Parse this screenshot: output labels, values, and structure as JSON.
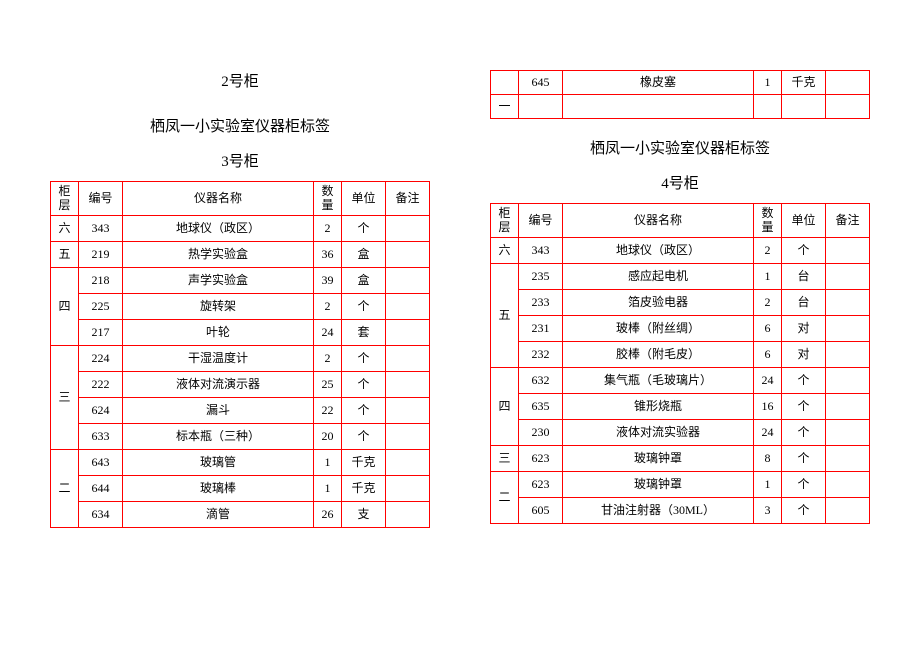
{
  "colors": {
    "border": "#ff0000",
    "text": "#000000",
    "background": "#ffffff"
  },
  "left": {
    "top_heading": "2号柜",
    "title": "栖凤一小实验室仪器柜标签",
    "cabinet": "3号柜",
    "headers": {
      "layer": "柜层",
      "code": "编号",
      "name": "仪器名称",
      "qty": "数量",
      "unit": "单位",
      "note": "备注"
    },
    "rows": [
      {
        "layer": "六",
        "code": "343",
        "name": "地球仪（政区）",
        "qty": "2",
        "unit": "个",
        "note": "",
        "rowspan": 1
      },
      {
        "layer": "五",
        "code": "219",
        "name": "热学实验盒",
        "qty": "36",
        "unit": "盒",
        "note": "",
        "rowspan": 1
      },
      {
        "layer": "四",
        "code": "218",
        "name": "声学实验盒",
        "qty": "39",
        "unit": "盒",
        "note": "",
        "rowspan": 3
      },
      {
        "code": "225",
        "name": "旋转架",
        "qty": "2",
        "unit": "个",
        "note": ""
      },
      {
        "code": "217",
        "name": "叶轮",
        "qty": "24",
        "unit": "套",
        "note": ""
      },
      {
        "layer": "三",
        "code": "224",
        "name": "干湿温度计",
        "qty": "2",
        "unit": "个",
        "note": "",
        "rowspan": 4
      },
      {
        "code": "222",
        "name": "液体对流演示器",
        "qty": "25",
        "unit": "个",
        "note": ""
      },
      {
        "code": "624",
        "name": "漏斗",
        "qty": "22",
        "unit": "个",
        "note": ""
      },
      {
        "code": "633",
        "name": "标本瓶（三种）",
        "qty": "20",
        "unit": "个",
        "note": ""
      },
      {
        "layer": "二",
        "code": "643",
        "name": "玻璃管",
        "qty": "1",
        "unit": "千克",
        "note": "",
        "rowspan": 3
      },
      {
        "code": "644",
        "name": "玻璃棒",
        "qty": "1",
        "unit": "千克",
        "note": ""
      },
      {
        "code": "634",
        "name": "滴管",
        "qty": "26",
        "unit": "支",
        "note": ""
      }
    ]
  },
  "right": {
    "mini_rows": [
      {
        "layer": "",
        "code": "645",
        "name": "橡皮塞",
        "qty": "1",
        "unit": "千克",
        "note": ""
      },
      {
        "layer": "一",
        "code": "",
        "name": "",
        "qty": "",
        "unit": "",
        "note": ""
      }
    ],
    "title": "栖凤一小实验室仪器柜标签",
    "cabinet": "4号柜",
    "headers": {
      "layer": "柜层",
      "code": "编号",
      "name": "仪器名称",
      "qty": "数量",
      "unit": "单位",
      "note": "备注"
    },
    "rows": [
      {
        "layer": "六",
        "code": "343",
        "name": "地球仪（政区）",
        "qty": "2",
        "unit": "个",
        "note": "",
        "rowspan": 1
      },
      {
        "layer": "五",
        "code": "235",
        "name": "感应起电机",
        "qty": "1",
        "unit": "台",
        "note": "",
        "rowspan": 4
      },
      {
        "code": "233",
        "name": "箔皮验电器",
        "qty": "2",
        "unit": "台",
        "note": ""
      },
      {
        "code": "231",
        "name": "玻棒（附丝绸）",
        "qty": "6",
        "unit": "对",
        "note": ""
      },
      {
        "code": "232",
        "name": "胶棒（附毛皮）",
        "qty": "6",
        "unit": "对",
        "note": ""
      },
      {
        "layer": "四",
        "code": "632",
        "name": "集气瓶（毛玻璃片）",
        "qty": "24",
        "unit": "个",
        "note": "",
        "rowspan": 3
      },
      {
        "code": "635",
        "name": "锥形烧瓶",
        "qty": "16",
        "unit": "个",
        "note": ""
      },
      {
        "code": "230",
        "name": "液体对流实验器",
        "qty": "24",
        "unit": "个",
        "note": ""
      },
      {
        "layer": "三",
        "code": "623",
        "name": "玻璃钟罩",
        "qty": "8",
        "unit": "个",
        "note": "",
        "rowspan": 1
      },
      {
        "layer": "二",
        "code": "623",
        "name": "玻璃钟罩",
        "qty": "1",
        "unit": "个",
        "note": "",
        "rowspan": 2
      },
      {
        "code": "605",
        "name": "甘油注射器（30ML）",
        "qty": "3",
        "unit": "个",
        "note": ""
      }
    ]
  }
}
